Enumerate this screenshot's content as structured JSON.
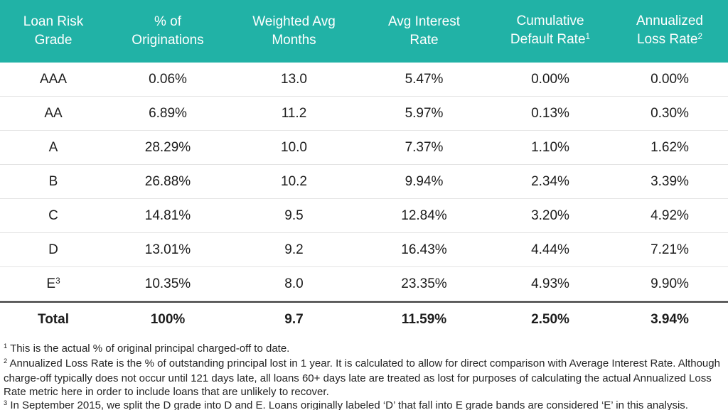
{
  "colors": {
    "header_bg": "#21B2A6",
    "header_text": "#FFFFFF",
    "row_divider": "#E4E4E4",
    "total_divider": "#3B3B3B",
    "body_text": "#1C1C1C"
  },
  "table": {
    "columns": [
      {
        "lines": [
          "Loan Risk",
          "Grade"
        ],
        "sup": ""
      },
      {
        "lines": [
          "% of",
          "Originations"
        ],
        "sup": ""
      },
      {
        "lines": [
          "Weighted Avg",
          "Months"
        ],
        "sup": ""
      },
      {
        "lines": [
          "Avg Interest",
          "Rate"
        ],
        "sup": ""
      },
      {
        "lines": [
          "Cumulative",
          "Default Rate"
        ],
        "sup": "1"
      },
      {
        "lines": [
          "Annualized",
          "Loss Rate"
        ],
        "sup": "2"
      }
    ],
    "grade_superscripts": {
      "E": "3"
    },
    "total_label": "Total"
  },
  "chart_data": {
    "type": "table",
    "title": "",
    "columns": [
      "Loan Risk Grade",
      "% of Originations",
      "Weighted Avg Months",
      "Avg Interest Rate",
      "Cumulative Default Rate",
      "Annualized Loss Rate"
    ],
    "rows": [
      [
        "AAA",
        "0.06%",
        "13.0",
        "5.47%",
        "0.00%",
        "0.00%"
      ],
      [
        "AA",
        "6.89%",
        "11.2",
        "5.97%",
        "0.13%",
        "0.30%"
      ],
      [
        "A",
        "28.29%",
        "10.0",
        "7.37%",
        "1.10%",
        "1.62%"
      ],
      [
        "B",
        "26.88%",
        "10.2",
        "9.94%",
        "2.34%",
        "3.39%"
      ],
      [
        "C",
        "14.81%",
        "9.5",
        "12.84%",
        "3.20%",
        "4.92%"
      ],
      [
        "D",
        "13.01%",
        "9.2",
        "16.43%",
        "4.44%",
        "7.21%"
      ],
      [
        "E",
        "10.35%",
        "8.0",
        "23.35%",
        "4.93%",
        "9.90%"
      ],
      [
        "Total",
        "100%",
        "9.7",
        "11.59%",
        "2.50%",
        "3.94%"
      ]
    ]
  },
  "footnotes": [
    {
      "sup": "1",
      "text": "This is the actual % of original principal charged-off to date."
    },
    {
      "sup": "2",
      "text": "Annualized Loss Rate is the % of outstanding principal lost in 1 year. It is calculated to allow for direct comparison with Average Interest Rate. Although charge-off typically does not occur until 121 days late, all loans 60+ days late are treated as lost for purposes of calculating the actual Annualized Loss Rate metric here in order to include loans that are unlikely to recover."
    },
    {
      "sup": "3",
      "text": "In September 2015, we split the D grade into D and E. Loans originally labeled ‘D’ that fall into E grade bands are considered ‘E’ in this analysis."
    }
  ]
}
